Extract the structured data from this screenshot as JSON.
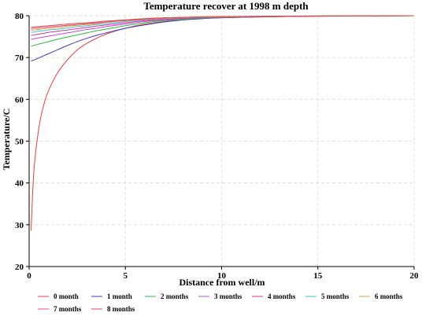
{
  "chart_data": {
    "type": "line",
    "title": "Temperature recover at 1998 m depth",
    "xlabel": "Distance from well/m",
    "ylabel": "Temperature/C",
    "xlim": [
      0,
      20
    ],
    "ylim": [
      20,
      80
    ],
    "xticks": [
      0,
      5,
      10,
      15,
      20
    ],
    "yticks": [
      20,
      30,
      40,
      50,
      60,
      70,
      80
    ],
    "grid": true,
    "legend_position": "bottom",
    "x": [
      0.1,
      0.25,
      0.5,
      0.75,
      1,
      1.5,
      2,
      2.5,
      3,
      3.5,
      4,
      5,
      6,
      7,
      8,
      9,
      10,
      12,
      14,
      16,
      18,
      20
    ],
    "series": [
      {
        "name": "0 month",
        "color": "#e8403c",
        "values": [
          28.6,
          43,
          53,
          58.5,
          62,
          66.5,
          69.5,
          71.8,
          73.4,
          74.6,
          75.6,
          77.0,
          78.0,
          78.6,
          79.0,
          79.3,
          79.5,
          79.7,
          79.85,
          79.92,
          79.96,
          80
        ]
      },
      {
        "name": "1 month",
        "color": "#3a3aca",
        "values": [
          69.2,
          69.4,
          69.9,
          70.4,
          70.9,
          71.9,
          72.9,
          73.8,
          74.6,
          75.3,
          75.9,
          77.0,
          77.8,
          78.5,
          79.0,
          79.3,
          79.5,
          79.7,
          79.85,
          79.92,
          79.96,
          80
        ]
      },
      {
        "name": "2 months",
        "color": "#22c02e",
        "values": [
          72.7,
          72.9,
          73.2,
          73.5,
          73.8,
          74.4,
          74.9,
          75.4,
          75.9,
          76.4,
          76.8,
          77.6,
          78.3,
          78.8,
          79.1,
          79.4,
          79.55,
          79.75,
          79.85,
          79.92,
          79.96,
          80
        ]
      },
      {
        "name": "3 months",
        "color": "#c44ad6",
        "values": [
          74.3,
          74.5,
          74.7,
          74.9,
          75.1,
          75.5,
          75.9,
          76.3,
          76.7,
          77.0,
          77.4,
          78.0,
          78.6,
          79.0,
          79.3,
          79.5,
          79.6,
          79.78,
          79.87,
          79.93,
          79.97,
          80
        ]
      },
      {
        "name": "4 months",
        "color": "#d4349a",
        "values": [
          75.3,
          75.4,
          75.6,
          75.8,
          76.0,
          76.3,
          76.6,
          76.9,
          77.2,
          77.5,
          77.8,
          78.3,
          78.8,
          79.1,
          79.4,
          79.55,
          79.65,
          79.8,
          79.88,
          79.94,
          79.97,
          80
        ]
      },
      {
        "name": "5 months",
        "color": "#2fc6e0",
        "values": [
          76.0,
          76.1,
          76.3,
          76.4,
          76.6,
          76.8,
          77.1,
          77.4,
          77.6,
          77.9,
          78.1,
          78.6,
          79.0,
          79.3,
          79.5,
          79.62,
          79.7,
          79.82,
          79.9,
          79.95,
          79.97,
          80
        ]
      },
      {
        "name": "6 months",
        "color": "#e0a02a",
        "values": [
          76.5,
          76.6,
          76.7,
          76.9,
          77.0,
          77.2,
          77.5,
          77.7,
          77.9,
          78.1,
          78.4,
          78.8,
          79.1,
          79.4,
          79.55,
          79.66,
          79.73,
          79.84,
          79.9,
          79.95,
          79.97,
          80
        ]
      },
      {
        "name": "7 months",
        "color": "#e64a8c",
        "values": [
          76.9,
          77.0,
          77.1,
          77.2,
          77.3,
          77.5,
          77.7,
          77.9,
          78.1,
          78.3,
          78.5,
          78.9,
          79.2,
          79.45,
          79.6,
          79.7,
          79.76,
          79.85,
          79.91,
          79.95,
          79.98,
          80
        ]
      },
      {
        "name": "8 months",
        "color": "#e8403c",
        "values": [
          77.2,
          77.3,
          77.4,
          77.5,
          77.6,
          77.8,
          78.0,
          78.2,
          78.3,
          78.5,
          78.7,
          79.0,
          79.3,
          79.5,
          79.63,
          79.72,
          79.78,
          79.86,
          79.92,
          79.96,
          79.98,
          80
        ]
      }
    ]
  }
}
